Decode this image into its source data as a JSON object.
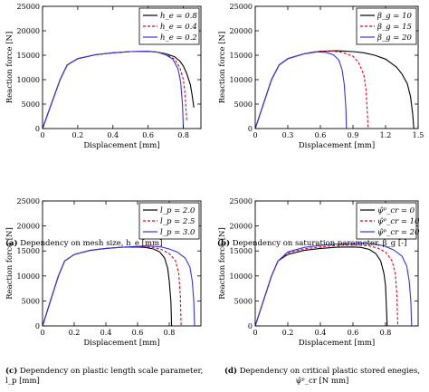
{
  "chart_data": [
    {
      "type": "line",
      "xlabel": "Displacement [mm]",
      "ylabel": "Reaction force [N]",
      "xlim": [
        0,
        0.9
      ],
      "ylim": [
        0,
        25000
      ],
      "xticks": [
        0,
        0.2,
        0.4,
        0.6,
        0.8
      ],
      "xtick_labels": [
        "0",
        "0.2",
        "0.4",
        "0.6",
        "0.8"
      ],
      "yticks": [
        0,
        5000,
        10000,
        15000,
        20000,
        25000
      ],
      "ytick_labels": [
        "0",
        "5000",
        "10000",
        "15000",
        "20000",
        "25000"
      ],
      "grid": false,
      "legend": "top-right",
      "caption_tag": "(a)",
      "caption": "Dependency on mesh size, h_e [mm]",
      "series": [
        {
          "name": "h_e = 0.8",
          "color": "#000000",
          "dash": "solid",
          "x": [
            0,
            0.1,
            0.14,
            0.2,
            0.3,
            0.4,
            0.5,
            0.6,
            0.65,
            0.7,
            0.75,
            0.78,
            0.8,
            0.82,
            0.84,
            0.85,
            0.86
          ],
          "y": [
            0,
            10000,
            13000,
            14300,
            15100,
            15500,
            15750,
            15800,
            15650,
            15300,
            14700,
            13800,
            12800,
            11200,
            9000,
            6800,
            4300
          ]
        },
        {
          "name": "h_e = 0.4",
          "color": "#e8001c",
          "dash": "3,2",
          "x": [
            0,
            0.1,
            0.14,
            0.2,
            0.3,
            0.4,
            0.5,
            0.6,
            0.65,
            0.7,
            0.75,
            0.78,
            0.8,
            0.81,
            0.815,
            0.82
          ],
          "y": [
            0,
            10000,
            13000,
            14300,
            15100,
            15500,
            15750,
            15800,
            15650,
            15200,
            14200,
            12500,
            10000,
            7000,
            4000,
            1500
          ]
        },
        {
          "name": "h_e = 0.2",
          "color": "#3333ee",
          "dash": "solid",
          "x": [
            0,
            0.1,
            0.14,
            0.2,
            0.3,
            0.4,
            0.5,
            0.6,
            0.65,
            0.7,
            0.74,
            0.77,
            0.785,
            0.795,
            0.8
          ],
          "y": [
            0,
            10000,
            13000,
            14300,
            15100,
            15500,
            15750,
            15800,
            15650,
            15100,
            14200,
            12200,
            9500,
            5000,
            0
          ]
        }
      ]
    },
    {
      "type": "line",
      "xlabel": "Displacement [mm]",
      "ylabel": "Reaction force [N]",
      "xlim": [
        0,
        1.5
      ],
      "ylim": [
        0,
        25000
      ],
      "xticks": [
        0,
        0.3,
        0.6,
        0.9,
        1.2,
        1.5
      ],
      "xtick_labels": [
        "0",
        "0.3",
        "0.6",
        "0.9",
        "1.2",
        "1.5"
      ],
      "yticks": [
        0,
        5000,
        10000,
        15000,
        20000,
        25000
      ],
      "ytick_labels": [
        "0",
        "5000",
        "10000",
        "15000",
        "20000",
        "25000"
      ],
      "grid": false,
      "legend": "top-right",
      "caption_tag": "(b)",
      "caption": "Dependency on saturation parameter, β_g [-]",
      "series": [
        {
          "name": "β_g = 10",
          "color": "#000000",
          "dash": "solid",
          "x": [
            0,
            0.15,
            0.22,
            0.3,
            0.45,
            0.6,
            0.75,
            0.9,
            1.0,
            1.1,
            1.2,
            1.3,
            1.35,
            1.4,
            1.43,
            1.45,
            1.46
          ],
          "y": [
            0,
            10000,
            13000,
            14300,
            15300,
            15800,
            15900,
            15750,
            15500,
            15000,
            14200,
            12600,
            11200,
            9200,
            6500,
            3000,
            0
          ]
        },
        {
          "name": "β_g = 15",
          "color": "#e8001c",
          "dash": "3,2",
          "x": [
            0,
            0.15,
            0.22,
            0.3,
            0.45,
            0.6,
            0.7,
            0.8,
            0.9,
            0.95,
            1.0,
            1.02,
            1.03,
            1.04
          ],
          "y": [
            0,
            10000,
            13000,
            14300,
            15300,
            15800,
            15850,
            15600,
            14800,
            13600,
            11000,
            8000,
            4000,
            0
          ]
        },
        {
          "name": "β_g = 20",
          "color": "#3333ee",
          "dash": "solid",
          "x": [
            0,
            0.15,
            0.22,
            0.3,
            0.45,
            0.55,
            0.65,
            0.72,
            0.77,
            0.8,
            0.82,
            0.835,
            0.84
          ],
          "y": [
            0,
            10000,
            13000,
            14300,
            15300,
            15700,
            15600,
            15100,
            14000,
            12000,
            9000,
            4000,
            0
          ]
        }
      ]
    },
    {
      "type": "line",
      "xlabel": "Displacement [mm]",
      "ylabel": "Reaction force [N]",
      "xlim": [
        0,
        1.0
      ],
      "ylim": [
        0,
        25000
      ],
      "xticks": [
        0,
        0.2,
        0.4,
        0.6,
        0.8
      ],
      "xtick_labels": [
        "0",
        "0.2",
        "0.4",
        "0.6",
        "0.8"
      ],
      "yticks": [
        0,
        5000,
        10000,
        15000,
        20000,
        25000
      ],
      "ytick_labels": [
        "0",
        "5000",
        "10000",
        "15000",
        "20000",
        "25000"
      ],
      "grid": false,
      "legend": "top-right",
      "caption_tag": "(c)",
      "caption": "Dependency on plastic length scale parameter, l_p [mm]",
      "series": [
        {
          "name": "l_p = 2.0",
          "color": "#000000",
          "dash": "solid",
          "x": [
            0,
            0.1,
            0.14,
            0.2,
            0.3,
            0.4,
            0.5,
            0.6,
            0.65,
            0.7,
            0.74,
            0.77,
            0.79,
            0.8,
            0.81,
            0.815
          ],
          "y": [
            0,
            10000,
            13000,
            14300,
            15100,
            15500,
            15750,
            15800,
            15700,
            15400,
            14800,
            13600,
            11500,
            9000,
            5000,
            0
          ]
        },
        {
          "name": "l_p = 2.5",
          "color": "#e8001c",
          "dash": "3,2",
          "x": [
            0,
            0.1,
            0.14,
            0.2,
            0.3,
            0.4,
            0.5,
            0.6,
            0.65,
            0.7,
            0.75,
            0.8,
            0.84,
            0.86,
            0.87,
            0.875
          ],
          "y": [
            0,
            10000,
            13000,
            14300,
            15100,
            15500,
            15750,
            15900,
            15850,
            15700,
            15300,
            14500,
            13000,
            10500,
            6000,
            0
          ]
        },
        {
          "name": "l_p = 3.0",
          "color": "#3333ee",
          "dash": "solid",
          "x": [
            0,
            0.1,
            0.14,
            0.2,
            0.3,
            0.4,
            0.5,
            0.6,
            0.65,
            0.7,
            0.75,
            0.8,
            0.85,
            0.9,
            0.93,
            0.945,
            0.955,
            0.96
          ],
          "y": [
            0,
            10000,
            13000,
            14300,
            15100,
            15500,
            15750,
            15900,
            16000,
            15950,
            15800,
            15400,
            14800,
            13600,
            11800,
            9000,
            5000,
            0
          ]
        }
      ]
    },
    {
      "type": "line",
      "xlabel": "Displacement [mm]",
      "ylabel": "Reaction force [N]",
      "xlim": [
        0,
        1.0
      ],
      "ylim": [
        0,
        25000
      ],
      "xticks": [
        0,
        0.2,
        0.4,
        0.6,
        0.8
      ],
      "xtick_labels": [
        "0",
        "0.2",
        "0.4",
        "0.6",
        "0.8"
      ],
      "yticks": [
        0,
        5000,
        10000,
        15000,
        20000,
        25000
      ],
      "ytick_labels": [
        "0",
        "5000",
        "10000",
        "15000",
        "20000",
        "25000"
      ],
      "grid": false,
      "legend": "top-right",
      "caption_tag": "(d)",
      "caption": "Dependency on critical plastic stored enegies, ψ̂ᵖ_cr [N mm]",
      "series": [
        {
          "name": "ψ̂ᵖ_cr = 0",
          "color": "#000000",
          "dash": "solid",
          "x": [
            0,
            0.1,
            0.14,
            0.2,
            0.3,
            0.4,
            0.5,
            0.6,
            0.65,
            0.7,
            0.74,
            0.77,
            0.79,
            0.8,
            0.805,
            0.81
          ],
          "y": [
            0,
            10000,
            13000,
            14300,
            15100,
            15500,
            15750,
            15800,
            15700,
            15300,
            14500,
            13000,
            10500,
            8000,
            4000,
            0
          ]
        },
        {
          "name": "ψ̂ᵖ_cr = 10",
          "color": "#e8001c",
          "dash": "3,2",
          "x": [
            0,
            0.1,
            0.14,
            0.2,
            0.3,
            0.4,
            0.5,
            0.6,
            0.65,
            0.7,
            0.75,
            0.8,
            0.84,
            0.86,
            0.87,
            0.875
          ],
          "y": [
            0,
            10000,
            13000,
            14600,
            15400,
            15800,
            16100,
            16200,
            16150,
            16000,
            15600,
            14800,
            13000,
            10500,
            6000,
            0
          ]
        },
        {
          "name": "ψ̂ᵖ_cr = 20",
          "color": "#3333ee",
          "dash": "solid",
          "x": [
            0,
            0.1,
            0.14,
            0.2,
            0.3,
            0.4,
            0.5,
            0.6,
            0.65,
            0.7,
            0.75,
            0.8,
            0.85,
            0.9,
            0.93,
            0.945,
            0.955,
            0.96
          ],
          "y": [
            0,
            10000,
            13000,
            14800,
            15700,
            16100,
            16400,
            16500,
            16550,
            16500,
            16300,
            15900,
            15200,
            14000,
            12000,
            9000,
            5000,
            0
          ]
        }
      ]
    }
  ]
}
